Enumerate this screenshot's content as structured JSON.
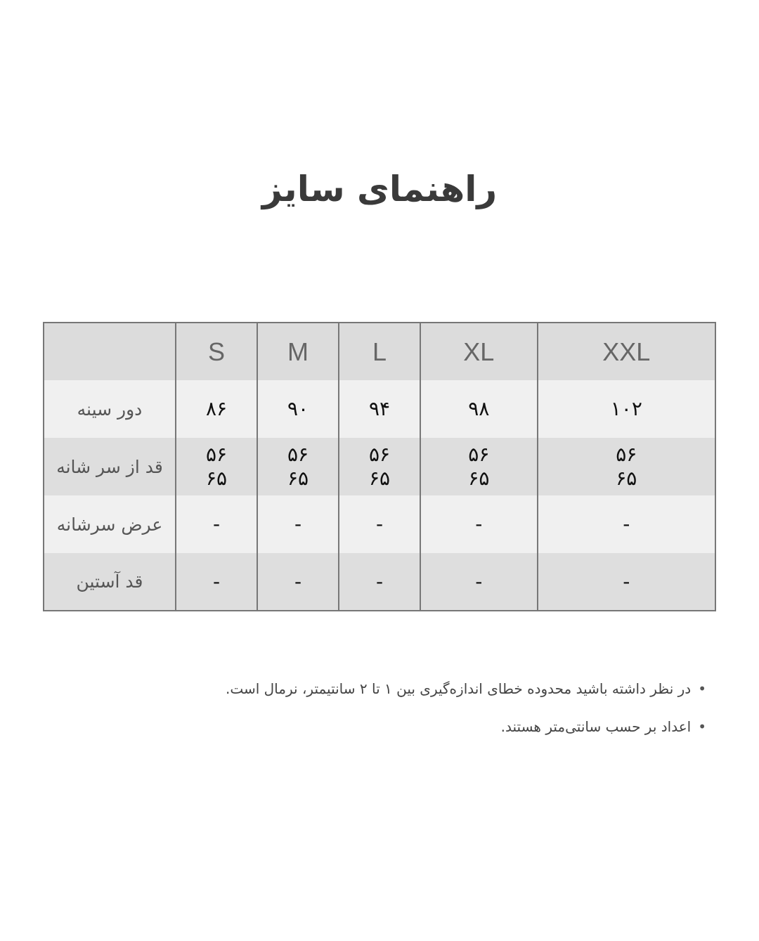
{
  "title": "راهنمای سایز",
  "table": {
    "sizes": [
      "S",
      "M",
      "L",
      "XL",
      "XXL"
    ],
    "rows": [
      {
        "label": "دور سینه",
        "values": [
          "۸۶",
          "۹۰",
          "۹۴",
          "۹۸",
          "۱۰۲"
        ]
      },
      {
        "label": "قد از سر شانه",
        "values": [
          "۵۶\n۶۵",
          "۵۶\n۶۵",
          "۵۶\n۶۵",
          "۵۶\n۶۵",
          "۵۶\n۶۵"
        ]
      },
      {
        "label": "عرض سرشانه",
        "values": [
          "-",
          "-",
          "-",
          "-",
          "-"
        ]
      },
      {
        "label": "قد آستین",
        "values": [
          "-",
          "-",
          "-",
          "-",
          "-"
        ]
      }
    ]
  },
  "notes": [
    "در نظر داشته باشید محدوده خطای اندازه‌گیری بین ۱ تا ۲ سانتیمتر، نرمال است.",
    "اعداد بر حسب سانتی‌متر هستند."
  ],
  "colors": {
    "header_bg": "#dcdcdc",
    "row_light": "#f0f0f0",
    "row_dark": "#dedede",
    "border": "#777777"
  }
}
